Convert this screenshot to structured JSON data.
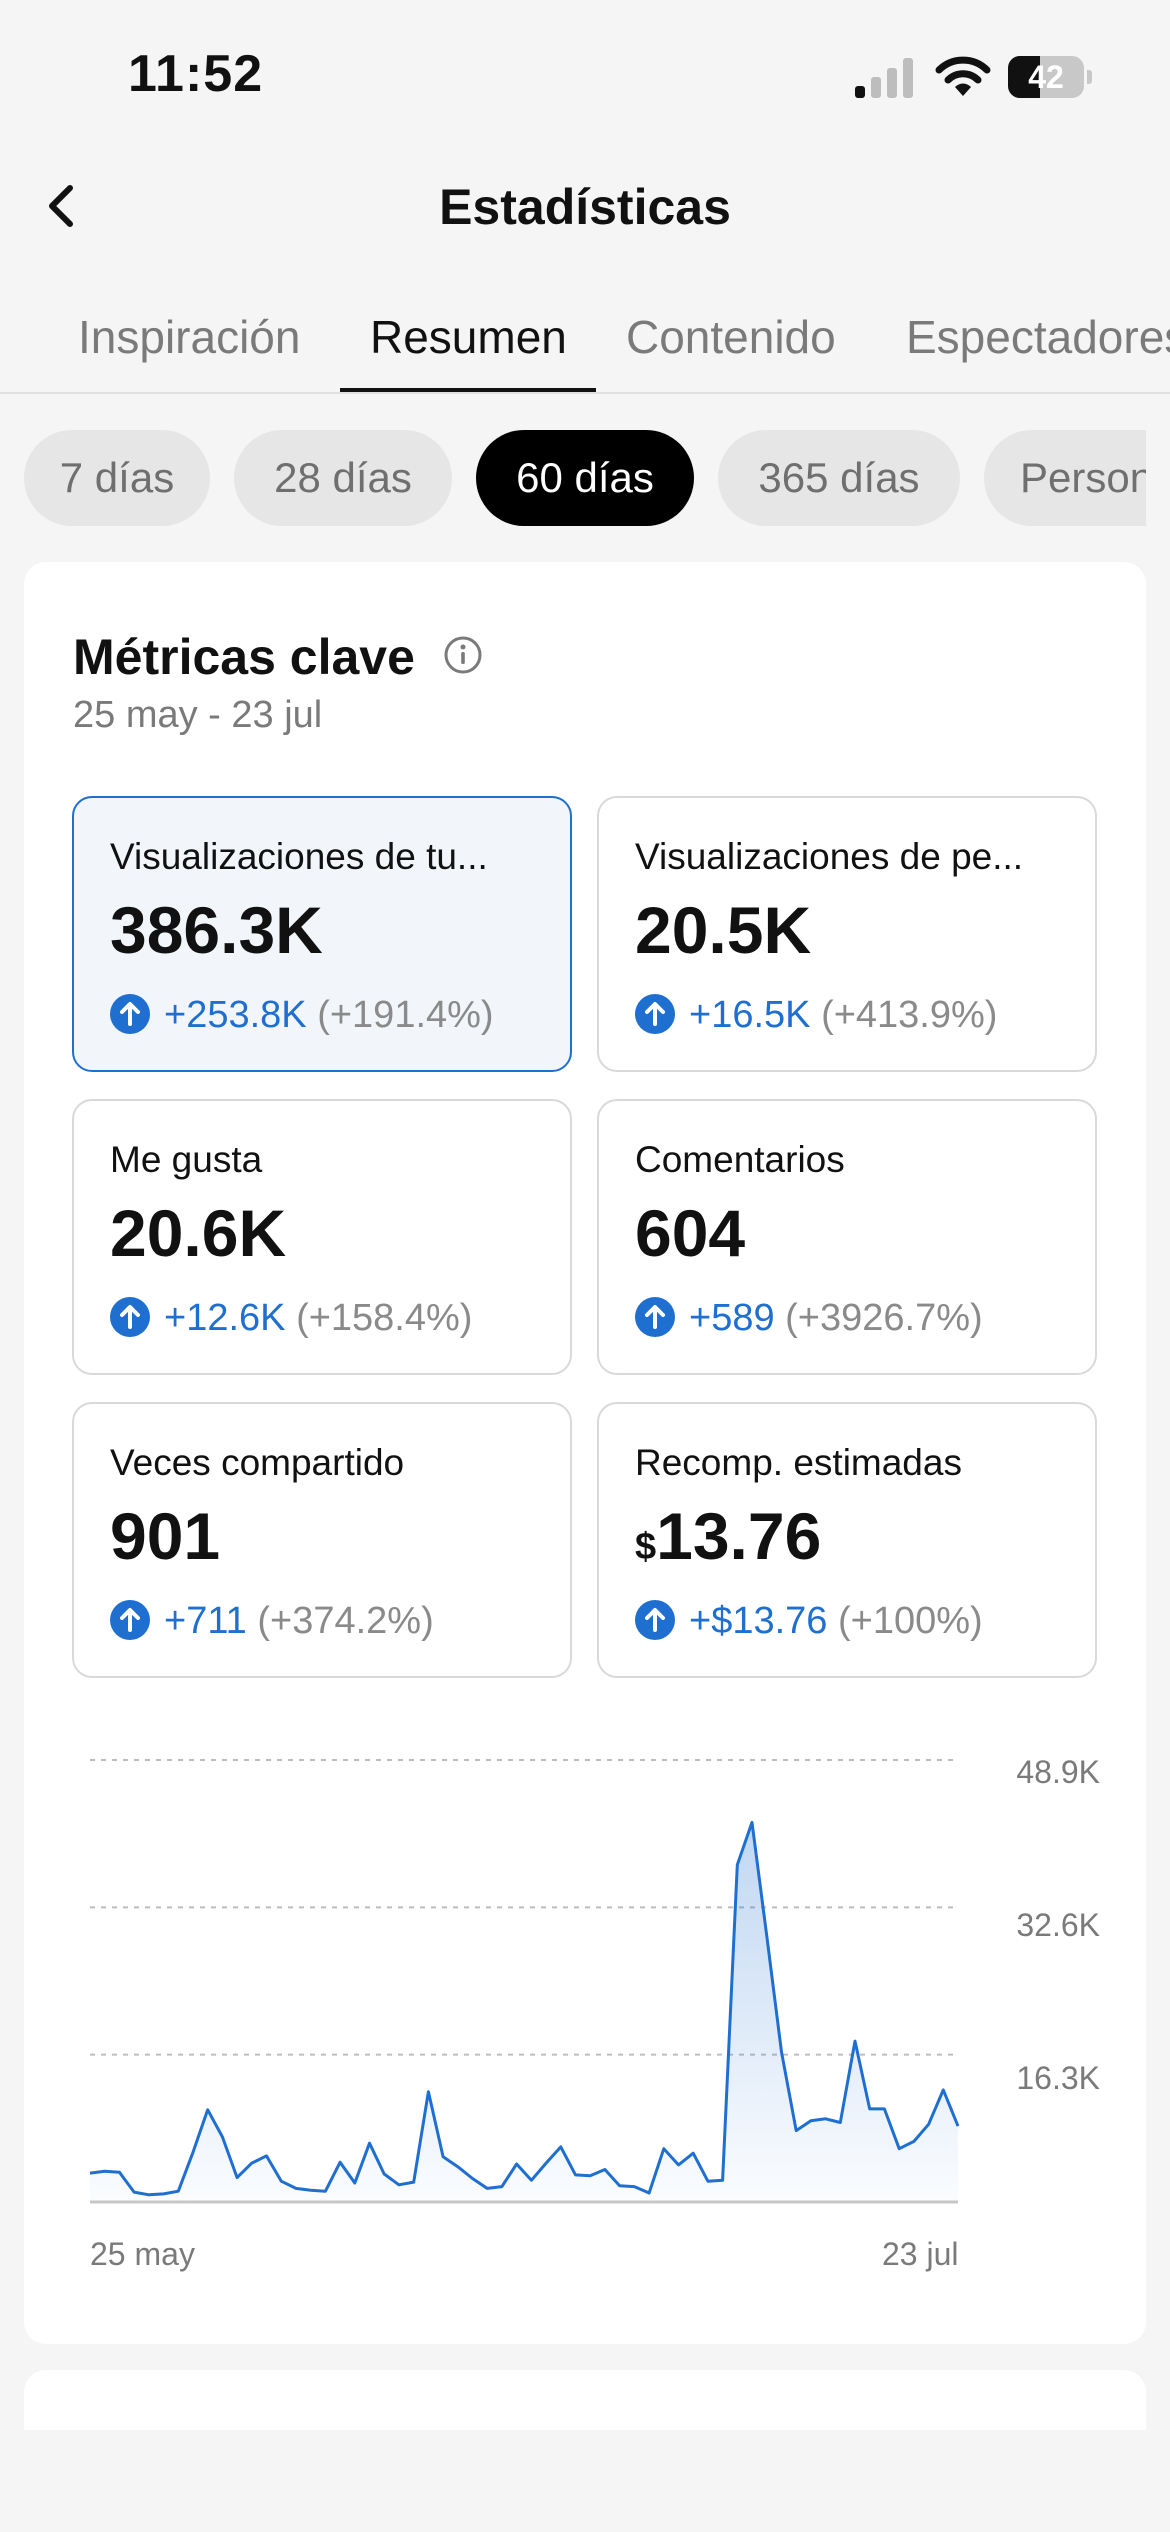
{
  "status_bar": {
    "time": "11:52",
    "battery": "42",
    "battery_level": 0.42
  },
  "header": {
    "title": "Estadísticas"
  },
  "tabs": [
    {
      "label": "Inspiración",
      "active": false
    },
    {
      "label": "Resumen",
      "active": true
    },
    {
      "label": "Contenido",
      "active": false
    },
    {
      "label": "Espectadores",
      "active": false
    }
  ],
  "periods": [
    {
      "label": "7 días",
      "active": false
    },
    {
      "label": "28 días",
      "active": false
    },
    {
      "label": "60 días",
      "active": true
    },
    {
      "label": "365 días",
      "active": false
    },
    {
      "label": "Personalizado",
      "active": false
    }
  ],
  "key_metrics": {
    "title": "Métricas clave",
    "date_range": "25 may - 23 jul",
    "cards": [
      {
        "label": "Visualizaciones de tu...",
        "value": "386.3K",
        "change": "+253.8K",
        "pct": "(+191.4%)",
        "selected": true
      },
      {
        "label": "Visualizaciones de pe...",
        "value": "20.5K",
        "change": "+16.5K",
        "pct": "(+413.9%)",
        "selected": false
      },
      {
        "label": "Me gusta",
        "value": "20.6K",
        "change": "+12.6K",
        "pct": "(+158.4%)",
        "selected": false
      },
      {
        "label": "Comentarios",
        "value": "604",
        "change": "+589",
        "pct": "(+3926.7%)",
        "selected": false
      },
      {
        "label": "Veces compartido",
        "value": "901",
        "change": "+711",
        "pct": "(+374.2%)",
        "selected": false
      },
      {
        "label": "Recomp. estimadas",
        "currency": "$",
        "value": "13.76",
        "change": "+$13.76",
        "pct": "(+100%)",
        "selected": false
      }
    ]
  },
  "colors": {
    "accent": "#1f6fd1",
    "text": "#111111",
    "muted": "#7a7a7a",
    "background": "#f5f5f5"
  },
  "icons": {
    "back": "chevron-left-icon",
    "info": "info-icon",
    "trend": "arrow-up-circle-icon"
  },
  "chart_data": {
    "type": "area",
    "x_start": "25 may",
    "x_end": "23 jul",
    "x_tick_labels": [
      "25 may",
      "23 jul"
    ],
    "y_tick_labels": [
      "48.9K",
      "32.6K",
      "16.3K"
    ],
    "y_ticks": [
      48900,
      32600,
      16300
    ],
    "ylim": [
      0,
      48900
    ],
    "grid": true,
    "values": [
      3200,
      3400,
      3300,
      1100,
      800,
      900,
      1200,
      5500,
      10200,
      7200,
      2700,
      4300,
      5100,
      2300,
      1500,
      1300,
      1200,
      4400,
      2100,
      6500,
      3100,
      1900,
      2200,
      12200,
      5000,
      3900,
      2600,
      1500,
      1700,
      4200,
      2400,
      4300,
      6100,
      3000,
      2900,
      3600,
      1800,
      1700,
      1000,
      5900,
      4100,
      5400,
      2300,
      2400,
      37300,
      42000,
      29500,
      16600,
      7900,
      9000,
      9200,
      8800,
      17800,
      10300,
      10300,
      5900,
      6700,
      8600,
      12400,
      8400
    ]
  }
}
